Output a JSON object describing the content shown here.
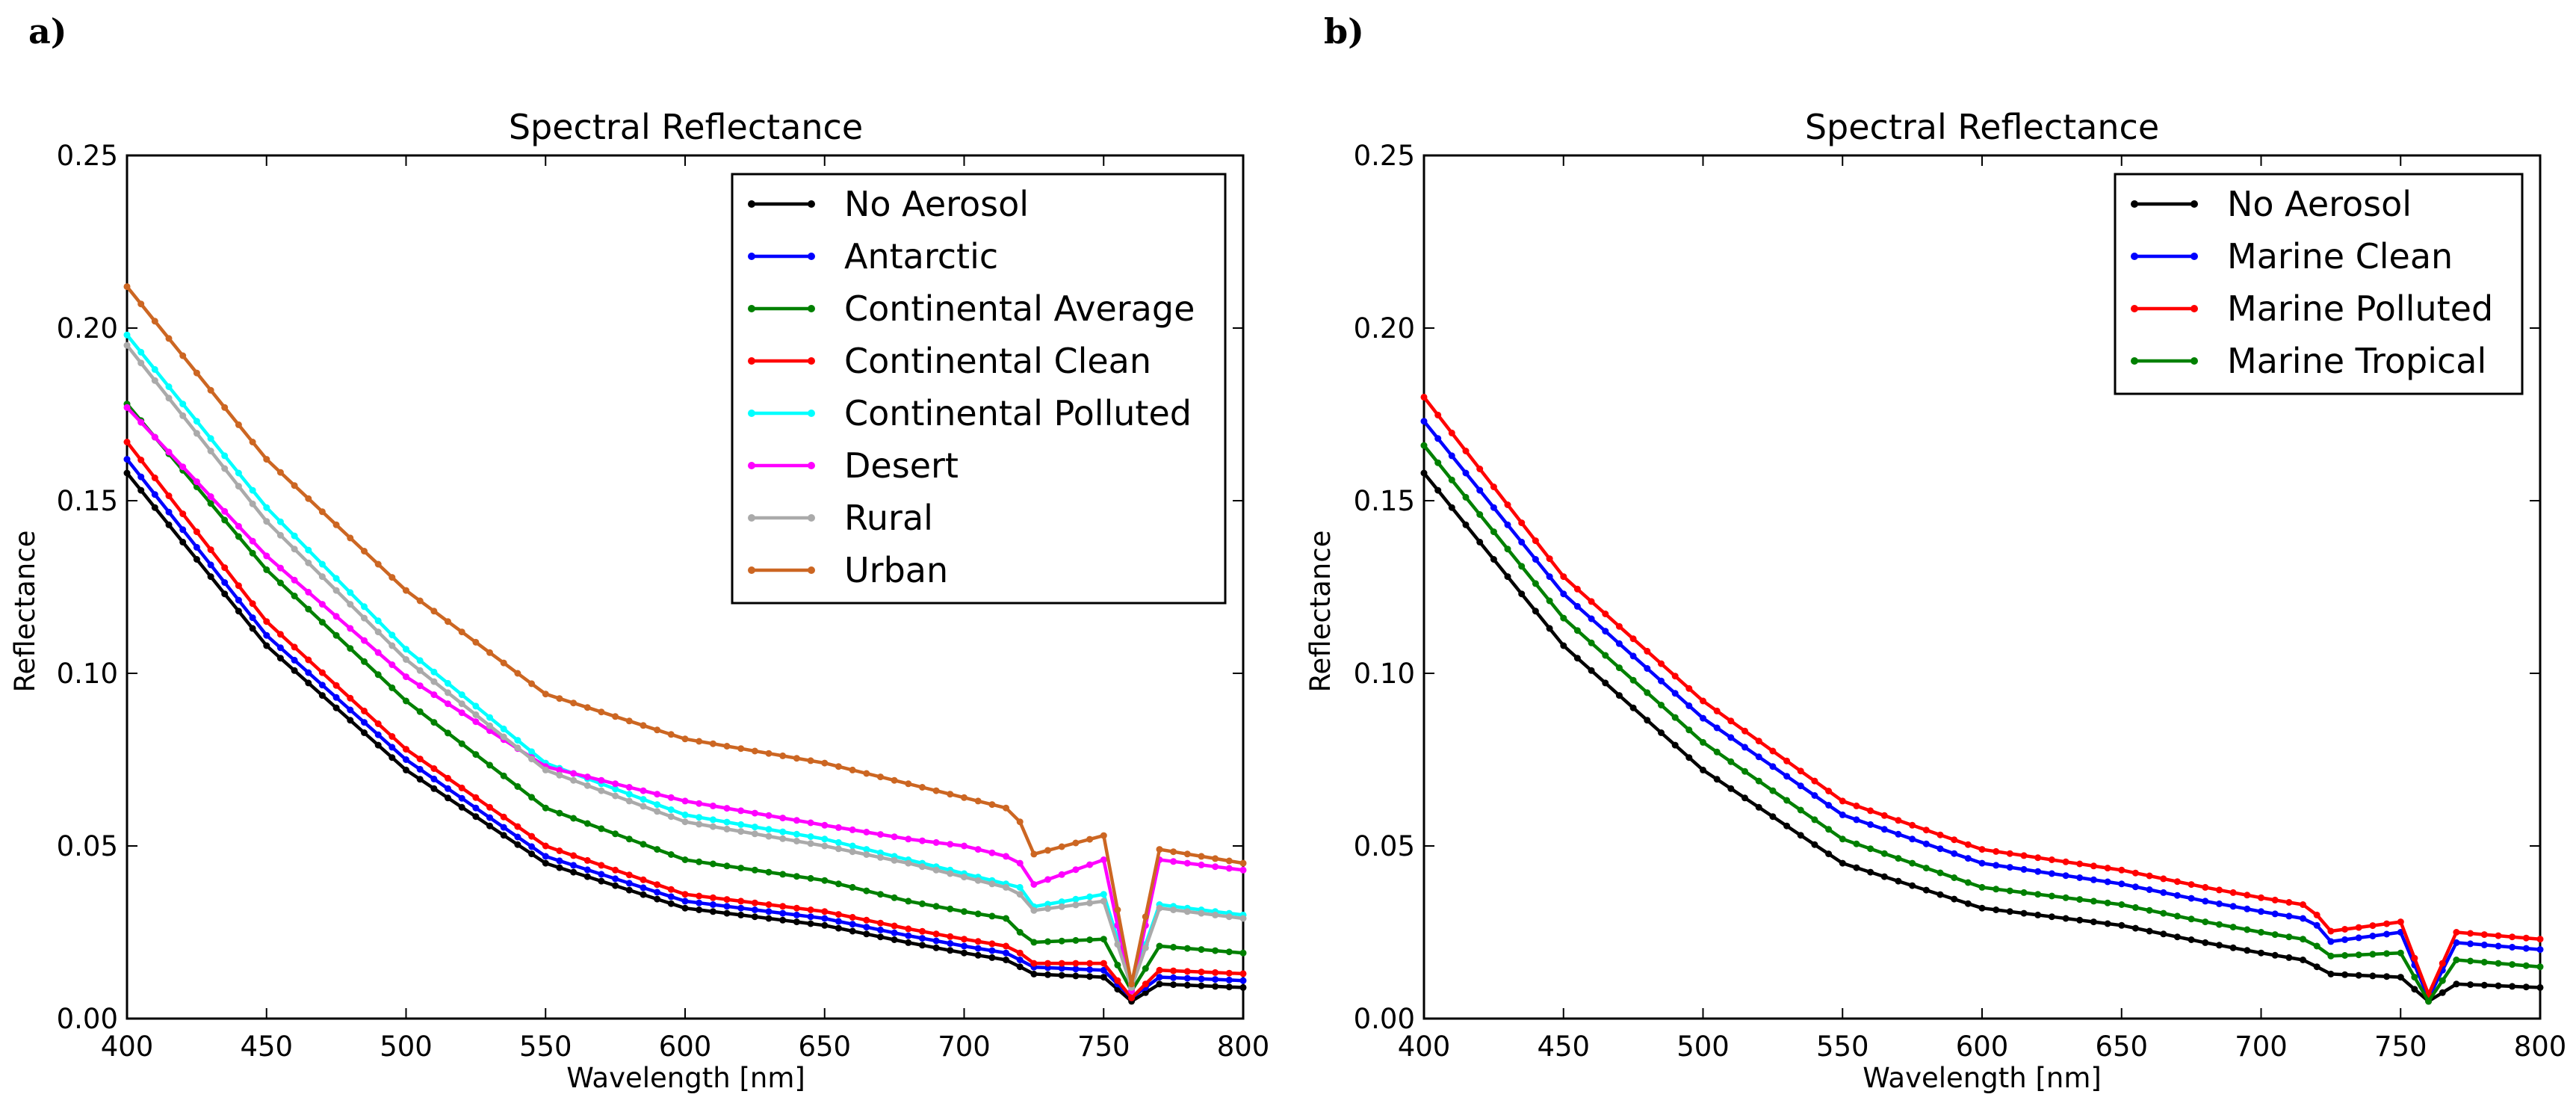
{
  "chart_data": [
    {
      "type": "line",
      "panel_label": "a)",
      "title": "Spectral Reflectance",
      "xlabel": "Wavelength [nm]",
      "ylabel": "Reflectance",
      "xlim": [
        400,
        800
      ],
      "ylim": [
        0,
        0.25
      ],
      "xticks": [
        400,
        450,
        500,
        550,
        600,
        650,
        700,
        750,
        800
      ],
      "xtick_labels": [
        "400",
        "450",
        "500",
        "550",
        "600",
        "650",
        "700",
        "750",
        "800"
      ],
      "yticks": [
        0,
        0.05,
        0.1,
        0.15,
        0.2,
        0.25
      ],
      "ytick_labels": [
        "0.00",
        "0.05",
        "0.10",
        "0.15",
        "0.20",
        "0.25"
      ],
      "legend_position": "top-right",
      "series": [
        {
          "name": "No Aerosol",
          "color": "#000000",
          "values": [
            0.158,
            0.108,
            0.072,
            0.045,
            0.032,
            0.027,
            0.022,
            0.019,
            0.017,
            0.015,
            0.013,
            0.012,
            0.005,
            0.01,
            0.009
          ]
        },
        {
          "name": "Antarctic",
          "color": "#0000ff",
          "values": [
            0.162,
            0.111,
            0.075,
            0.047,
            0.034,
            0.029,
            0.024,
            0.021,
            0.019,
            0.017,
            0.015,
            0.014,
            0.006,
            0.012,
            0.011
          ]
        },
        {
          "name": "Continental Average",
          "color": "#008000",
          "values": [
            0.178,
            0.13,
            0.092,
            0.061,
            0.046,
            0.04,
            0.034,
            0.031,
            0.029,
            0.025,
            0.022,
            0.023,
            0.008,
            0.021,
            0.019
          ]
        },
        {
          "name": "Continental Clean",
          "color": "#ff0000",
          "values": [
            0.167,
            0.115,
            0.078,
            0.05,
            0.036,
            0.031,
            0.026,
            0.023,
            0.021,
            0.019,
            0.016,
            0.016,
            0.006,
            0.014,
            0.013
          ]
        },
        {
          "name": "Continental Polluted",
          "color": "#00ffff",
          "values": [
            0.198,
            0.148,
            0.107,
            0.074,
            0.059,
            0.052,
            0.046,
            0.042,
            0.039,
            0.038,
            0.032,
            0.036,
            0.01,
            0.033,
            0.03
          ]
        },
        {
          "name": "Desert",
          "color": "#ff00ff",
          "values": [
            0.177,
            0.134,
            0.099,
            0.073,
            0.063,
            0.056,
            0.052,
            0.05,
            0.047,
            0.045,
            0.038,
            0.046,
            0.008,
            0.046,
            0.043
          ]
        },
        {
          "name": "Rural",
          "color": "#aaaaaa",
          "values": [
            0.195,
            0.144,
            0.104,
            0.072,
            0.057,
            0.05,
            0.045,
            0.041,
            0.038,
            0.036,
            0.031,
            0.034,
            0.009,
            0.032,
            0.029
          ]
        },
        {
          "name": "Urban",
          "color": "#cc6622",
          "values": [
            0.212,
            0.162,
            0.124,
            0.094,
            0.081,
            0.074,
            0.068,
            0.064,
            0.061,
            0.057,
            0.047,
            0.053,
            0.01,
            0.049,
            0.045
          ]
        }
      ]
    },
    {
      "type": "line",
      "panel_label": "b)",
      "title": "Spectral Reflectance",
      "xlabel": "Wavelength [nm]",
      "ylabel": "Reflectance",
      "xlim": [
        400,
        800
      ],
      "ylim": [
        0,
        0.25
      ],
      "xticks": [
        400,
        450,
        500,
        550,
        600,
        650,
        700,
        750,
        800
      ],
      "xtick_labels": [
        "400",
        "450",
        "500",
        "550",
        "600",
        "650",
        "700",
        "750",
        "800"
      ],
      "yticks": [
        0,
        0.05,
        0.1,
        0.15,
        0.2,
        0.25
      ],
      "ytick_labels": [
        "0.00",
        "0.05",
        "0.10",
        "0.15",
        "0.20",
        "0.25"
      ],
      "legend_position": "top-right",
      "series": [
        {
          "name": "No Aerosol",
          "color": "#000000",
          "values": [
            0.158,
            0.108,
            0.072,
            0.045,
            0.032,
            0.027,
            0.022,
            0.019,
            0.017,
            0.015,
            0.013,
            0.012,
            0.005,
            0.01,
            0.009
          ]
        },
        {
          "name": "Marine Clean",
          "color": "#0000ff",
          "values": [
            0.173,
            0.123,
            0.087,
            0.059,
            0.045,
            0.039,
            0.034,
            0.031,
            0.029,
            0.027,
            0.022,
            0.025,
            0.006,
            0.022,
            0.02
          ]
        },
        {
          "name": "Marine Polluted",
          "color": "#ff0000",
          "values": [
            0.18,
            0.128,
            0.092,
            0.063,
            0.049,
            0.043,
            0.038,
            0.035,
            0.033,
            0.03,
            0.025,
            0.028,
            0.007,
            0.025,
            0.023
          ]
        },
        {
          "name": "Marine Tropical",
          "color": "#008000",
          "values": [
            0.166,
            0.116,
            0.08,
            0.052,
            0.038,
            0.033,
            0.028,
            0.025,
            0.023,
            0.021,
            0.018,
            0.019,
            0.005,
            0.017,
            0.015
          ]
        }
      ]
    }
  ],
  "wavelength_knots": [
    400,
    450,
    500,
    550,
    600,
    650,
    680,
    700,
    715,
    720,
    722,
    750,
    760,
    770,
    800
  ]
}
